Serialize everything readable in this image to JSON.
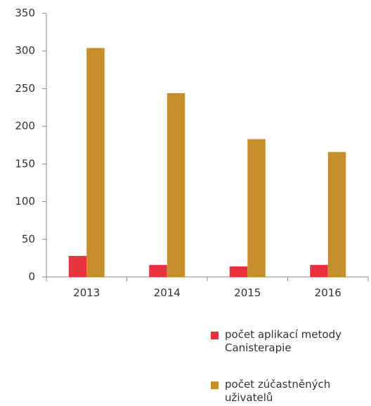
{
  "chart_data": {
    "type": "bar",
    "categories": [
      "2013",
      "2014",
      "2015",
      "2016"
    ],
    "series": [
      {
        "name": "počet aplikací metody Canisterapie",
        "color": "#e8323e",
        "values": [
          28,
          16,
          14,
          16
        ]
      },
      {
        "name": "počet zúčastněných uživatelů",
        "color": "#c68f2b",
        "values": [
          304,
          244,
          183,
          166
        ]
      }
    ],
    "ylim": [
      0,
      350
    ],
    "yticks": [
      0,
      50,
      100,
      150,
      200,
      250,
      300,
      350
    ],
    "grid": false,
    "legend": "bottom-right"
  }
}
